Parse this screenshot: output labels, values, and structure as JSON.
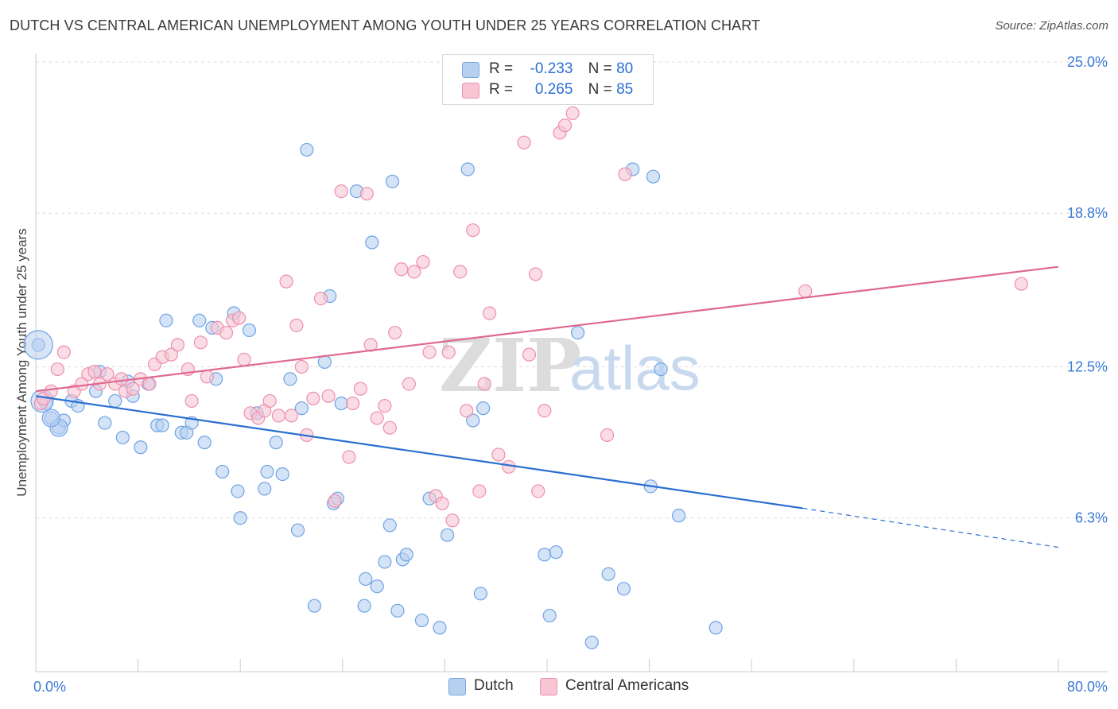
{
  "title": "DUTCH VS CENTRAL AMERICAN UNEMPLOYMENT AMONG YOUTH UNDER 25 YEARS CORRELATION CHART",
  "source": "Source: ZipAtlas.com",
  "watermark": {
    "zip": "ZIP",
    "atlas": "atlas"
  },
  "legend": {
    "rows": [
      {
        "r_label": "R =",
        "r_value": "-0.233",
        "n_label": "N =",
        "n_value": "80",
        "color": "#b8d0f0"
      },
      {
        "r_label": "R =",
        "r_value": "0.265",
        "n_label": "N =",
        "n_value": "85",
        "color": "#f7c5d4"
      }
    ]
  },
  "bottom_legend": [
    {
      "label": "Dutch",
      "color": "#b8d0f0"
    },
    {
      "label": "Central Americans",
      "color": "#f7c5d4"
    }
  ],
  "chart_data": {
    "type": "scatter",
    "ylabel": "Unemployment Among Youth under 25 years",
    "xlim": [
      0,
      80
    ],
    "ylim": [
      0,
      25
    ],
    "x_tick_labels": [
      "0.0%",
      "80.0%"
    ],
    "y_tick_labels": [
      "6.3%",
      "12.5%",
      "18.8%",
      "25.0%"
    ],
    "y_ticks": [
      6.3,
      12.5,
      18.8,
      25.0
    ],
    "series": [
      {
        "name": "Dutch",
        "color": "#6fa3e6",
        "fill": "#b8d0f0",
        "trend": {
          "x0": 0,
          "y0": 11.3,
          "x1": 60,
          "y1": 6.7,
          "dash_to_x": 80,
          "dash_to_y": 5.1,
          "color": "#2a6fd1"
        },
        "points": [
          [
            0.2,
            13.4
          ],
          [
            0.8,
            11.0
          ],
          [
            1.2,
            10.4
          ],
          [
            1.8,
            10.0
          ],
          [
            2.2,
            10.3
          ],
          [
            2.8,
            11.1
          ],
          [
            3.3,
            10.9
          ],
          [
            4.7,
            11.5
          ],
          [
            5.0,
            12.3
          ],
          [
            5.4,
            10.2
          ],
          [
            6.2,
            11.1
          ],
          [
            6.8,
            9.6
          ],
          [
            7.2,
            11.9
          ],
          [
            7.6,
            11.3
          ],
          [
            8.2,
            9.2
          ],
          [
            8.8,
            11.8
          ],
          [
            9.5,
            10.1
          ],
          [
            9.9,
            10.1
          ],
          [
            10.2,
            14.4
          ],
          [
            11.4,
            9.8
          ],
          [
            11.8,
            9.8
          ],
          [
            12.2,
            10.2
          ],
          [
            12.8,
            14.4
          ],
          [
            13.2,
            9.4
          ],
          [
            13.8,
            14.1
          ],
          [
            14.1,
            12.0
          ],
          [
            14.6,
            8.2
          ],
          [
            15.5,
            14.7
          ],
          [
            15.8,
            7.4
          ],
          [
            16.0,
            6.3
          ],
          [
            16.7,
            14.0
          ],
          [
            17.3,
            10.6
          ],
          [
            17.9,
            7.5
          ],
          [
            18.1,
            8.2
          ],
          [
            18.8,
            9.4
          ],
          [
            19.3,
            8.1
          ],
          [
            19.9,
            12.0
          ],
          [
            20.5,
            5.8
          ],
          [
            20.8,
            10.8
          ],
          [
            21.2,
            21.4
          ],
          [
            21.8,
            2.7
          ],
          [
            22.6,
            12.7
          ],
          [
            23.0,
            15.4
          ],
          [
            23.3,
            6.9
          ],
          [
            23.6,
            7.1
          ],
          [
            23.9,
            11.0
          ],
          [
            25.1,
            19.7
          ],
          [
            25.7,
            2.7
          ],
          [
            25.8,
            3.8
          ],
          [
            26.3,
            17.6
          ],
          [
            26.7,
            3.5
          ],
          [
            27.3,
            4.5
          ],
          [
            27.7,
            6.0
          ],
          [
            27.9,
            20.1
          ],
          [
            28.3,
            2.5
          ],
          [
            28.7,
            4.6
          ],
          [
            29.0,
            4.8
          ],
          [
            30.2,
            2.1
          ],
          [
            30.8,
            7.1
          ],
          [
            31.6,
            1.8
          ],
          [
            32.2,
            5.6
          ],
          [
            33.8,
            20.6
          ],
          [
            34.2,
            10.3
          ],
          [
            34.8,
            3.2
          ],
          [
            35.0,
            10.8
          ],
          [
            39.8,
            4.8
          ],
          [
            40.2,
            2.3
          ],
          [
            40.7,
            4.9
          ],
          [
            43.5,
            1.2
          ],
          [
            42.4,
            13.9
          ],
          [
            44.8,
            4.0
          ],
          [
            46.0,
            3.4
          ],
          [
            46.7,
            20.6
          ],
          [
            48.1,
            7.6
          ],
          [
            48.3,
            20.3
          ],
          [
            48.9,
            12.4
          ],
          [
            50.3,
            6.4
          ],
          [
            53.2,
            1.8
          ]
        ],
        "large_points": [
          [
            0.2,
            13.4
          ],
          [
            1.8,
            10.0
          ],
          [
            1.2,
            10.4
          ],
          [
            0.5,
            11.1
          ]
        ]
      },
      {
        "name": "Central Americans",
        "color": "#ee8fad",
        "fill": "#f7c5d4",
        "trend": {
          "x0": 0,
          "y0": 11.5,
          "x1": 80,
          "y1": 16.6,
          "color": "#e0688f"
        },
        "points": [
          [
            0.4,
            11.0
          ],
          [
            0.6,
            11.2
          ],
          [
            1.2,
            11.5
          ],
          [
            1.7,
            12.4
          ],
          [
            2.2,
            13.1
          ],
          [
            3.0,
            11.5
          ],
          [
            3.6,
            11.8
          ],
          [
            4.1,
            12.2
          ],
          [
            4.6,
            12.3
          ],
          [
            5.0,
            11.8
          ],
          [
            5.6,
            12.2
          ],
          [
            6.2,
            11.8
          ],
          [
            6.7,
            12.0
          ],
          [
            7.0,
            11.5
          ],
          [
            7.6,
            11.6
          ],
          [
            8.2,
            12.0
          ],
          [
            8.9,
            11.8
          ],
          [
            9.3,
            12.6
          ],
          [
            9.9,
            12.9
          ],
          [
            10.6,
            13.0
          ],
          [
            11.1,
            13.4
          ],
          [
            11.9,
            12.4
          ],
          [
            12.2,
            11.1
          ],
          [
            12.9,
            13.5
          ],
          [
            13.4,
            12.1
          ],
          [
            14.2,
            14.1
          ],
          [
            14.9,
            13.9
          ],
          [
            15.4,
            14.4
          ],
          [
            15.9,
            14.5
          ],
          [
            16.3,
            12.8
          ],
          [
            16.8,
            10.6
          ],
          [
            17.4,
            10.4
          ],
          [
            17.9,
            10.7
          ],
          [
            18.3,
            11.1
          ],
          [
            19.0,
            10.5
          ],
          [
            19.6,
            16.0
          ],
          [
            20.0,
            10.5
          ],
          [
            20.4,
            14.2
          ],
          [
            20.8,
            12.5
          ],
          [
            21.2,
            9.7
          ],
          [
            21.7,
            11.2
          ],
          [
            22.3,
            15.3
          ],
          [
            22.9,
            11.3
          ],
          [
            23.4,
            7.0
          ],
          [
            23.9,
            19.7
          ],
          [
            24.5,
            8.8
          ],
          [
            24.8,
            11.0
          ],
          [
            25.4,
            11.6
          ],
          [
            25.9,
            19.6
          ],
          [
            26.2,
            13.4
          ],
          [
            26.7,
            10.4
          ],
          [
            27.3,
            10.9
          ],
          [
            27.7,
            10.0
          ],
          [
            28.1,
            13.9
          ],
          [
            28.6,
            16.5
          ],
          [
            29.2,
            11.8
          ],
          [
            29.6,
            16.4
          ],
          [
            30.3,
            16.8
          ],
          [
            30.8,
            13.1
          ],
          [
            31.3,
            7.2
          ],
          [
            31.8,
            6.9
          ],
          [
            32.3,
            13.1
          ],
          [
            32.6,
            6.2
          ],
          [
            33.2,
            16.4
          ],
          [
            33.7,
            10.7
          ],
          [
            34.2,
            18.1
          ],
          [
            34.7,
            7.4
          ],
          [
            35.1,
            11.8
          ],
          [
            35.5,
            14.7
          ],
          [
            36.2,
            8.9
          ],
          [
            37.0,
            8.4
          ],
          [
            38.2,
            21.7
          ],
          [
            38.6,
            13.0
          ],
          [
            39.1,
            16.3
          ],
          [
            39.3,
            7.4
          ],
          [
            39.8,
            10.7
          ],
          [
            41.0,
            22.1
          ],
          [
            41.4,
            22.4
          ],
          [
            42.0,
            22.9
          ],
          [
            44.7,
            9.7
          ],
          [
            46.1,
            20.4
          ],
          [
            60.2,
            15.6
          ],
          [
            77.1,
            15.9
          ]
        ]
      }
    ]
  }
}
